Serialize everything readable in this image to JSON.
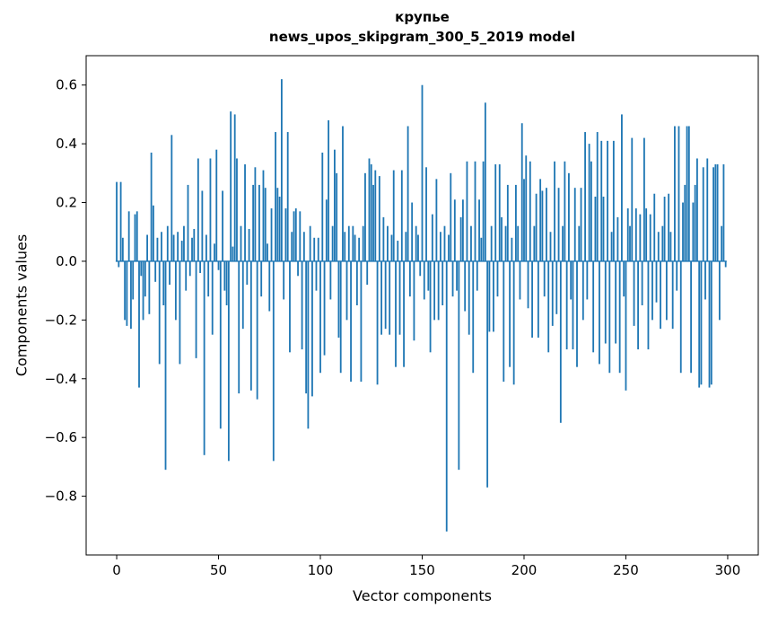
{
  "figure": {
    "title_line1": "крупье",
    "title_line2": "news_upos_skipgram_300_5_2019 model",
    "xlabel": "Vector components",
    "ylabel": "Components values"
  },
  "chart_data": {
    "type": "bar",
    "title": "крупье\nnews_upos_skipgram_300_5_2019 model",
    "xlabel": "Vector components",
    "ylabel": "Components values",
    "legend": "none",
    "grid": false,
    "bar_color": "#1f77b4",
    "xlim": [
      -15,
      315
    ],
    "ylim": [
      -1.0,
      0.7
    ],
    "xtick_values": [
      0,
      50,
      100,
      150,
      200,
      250,
      300
    ],
    "xtick_labels": [
      "0",
      "50",
      "100",
      "150",
      "200",
      "250",
      "300"
    ],
    "ytick_values": [
      -0.8,
      -0.6,
      -0.4,
      -0.2,
      0.0,
      0.2,
      0.4,
      0.6
    ],
    "ytick_labels": [
      "−0.8",
      "−0.6",
      "−0.4",
      "−0.2",
      "0.0",
      "0.2",
      "0.4",
      "0.6"
    ],
    "x_start": 0,
    "values": [
      0.27,
      -0.02,
      0.27,
      0.08,
      -0.2,
      -0.22,
      0.17,
      -0.23,
      -0.13,
      0.16,
      0.17,
      -0.43,
      -0.05,
      -0.2,
      -0.12,
      0.09,
      -0.18,
      0.37,
      0.19,
      -0.07,
      0.08,
      -0.35,
      0.1,
      -0.15,
      -0.71,
      0.12,
      -0.08,
      0.43,
      0.09,
      -0.2,
      0.1,
      -0.35,
      0.07,
      0.12,
      -0.1,
      0.26,
      -0.05,
      0.08,
      0.11,
      -0.33,
      0.35,
      -0.04,
      0.24,
      -0.66,
      0.09,
      -0.12,
      0.35,
      -0.25,
      0.06,
      0.38,
      -0.03,
      -0.57,
      0.24,
      -0.1,
      -0.15,
      -0.68,
      0.51,
      0.05,
      0.5,
      0.35,
      -0.45,
      0.12,
      -0.23,
      0.33,
      -0.08,
      0.11,
      -0.44,
      0.26,
      0.32,
      -0.47,
      0.26,
      -0.12,
      0.31,
      0.25,
      0.06,
      -0.17,
      0.18,
      -0.68,
      0.44,
      0.25,
      0.22,
      0.62,
      -0.13,
      0.18,
      0.44,
      -0.31,
      0.1,
      0.17,
      0.18,
      -0.05,
      0.17,
      -0.3,
      0.1,
      -0.45,
      -0.57,
      0.12,
      -0.46,
      0.08,
      -0.1,
      0.08,
      -0.38,
      0.37,
      -0.32,
      0.21,
      0.48,
      -0.13,
      0.12,
      0.38,
      0.3,
      -0.26,
      -0.38,
      0.46,
      0.1,
      -0.2,
      0.12,
      -0.41,
      0.12,
      0.09,
      -0.15,
      0.08,
      -0.41,
      0.12,
      0.3,
      -0.08,
      0.35,
      0.33,
      0.26,
      0.31,
      -0.42,
      0.29,
      -0.25,
      0.15,
      -0.23,
      0.12,
      -0.25,
      0.09,
      0.31,
      -0.36,
      0.07,
      -0.25,
      0.31,
      -0.36,
      0.1,
      0.46,
      -0.12,
      0.2,
      -0.27,
      0.12,
      0.09,
      -0.05,
      0.6,
      -0.13,
      0.32,
      -0.1,
      -0.31,
      0.16,
      -0.2,
      0.28,
      -0.2,
      0.1,
      -0.15,
      0.12,
      -0.92,
      0.09,
      0.3,
      -0.12,
      0.21,
      -0.1,
      -0.71,
      0.15,
      0.21,
      -0.17,
      0.34,
      -0.25,
      0.12,
      -0.38,
      0.34,
      -0.1,
      0.21,
      0.08,
      0.34,
      0.54,
      -0.77,
      -0.24,
      0.12,
      -0.24,
      0.33,
      -0.12,
      0.33,
      0.15,
      -0.41,
      0.12,
      0.26,
      -0.36,
      0.08,
      -0.42,
      0.26,
      0.12,
      -0.13,
      0.47,
      0.28,
      0.36,
      -0.16,
      0.34,
      -0.26,
      0.12,
      0.23,
      -0.26,
      0.28,
      0.24,
      -0.12,
      0.25,
      -0.31,
      0.1,
      -0.22,
      0.34,
      -0.18,
      0.25,
      -0.55,
      0.12,
      0.34,
      -0.3,
      0.3,
      -0.13,
      -0.3,
      0.25,
      -0.36,
      0.12,
      0.25,
      -0.2,
      0.44,
      -0.13,
      0.4,
      0.34,
      -0.31,
      0.22,
      0.44,
      -0.35,
      0.41,
      0.22,
      -0.28,
      0.41,
      -0.38,
      0.1,
      0.41,
      -0.28,
      0.15,
      -0.38,
      0.5,
      -0.12,
      -0.44,
      0.18,
      0.12,
      0.42,
      -0.22,
      0.18,
      -0.3,
      0.16,
      -0.15,
      0.42,
      0.18,
      -0.3,
      0.16,
      -0.2,
      0.23,
      -0.14,
      0.1,
      -0.23,
      0.12,
      0.22,
      -0.2,
      0.23,
      0.1,
      -0.23,
      0.46,
      -0.1,
      0.46,
      -0.38,
      0.2,
      0.26,
      0.46,
      0.46,
      -0.38,
      0.2,
      0.26,
      0.35,
      -0.43,
      -0.42,
      0.32,
      -0.13,
      0.35,
      -0.43,
      -0.42,
      0.32,
      0.33,
      0.33,
      -0.2,
      0.12,
      0.33,
      -0.02
    ]
  }
}
